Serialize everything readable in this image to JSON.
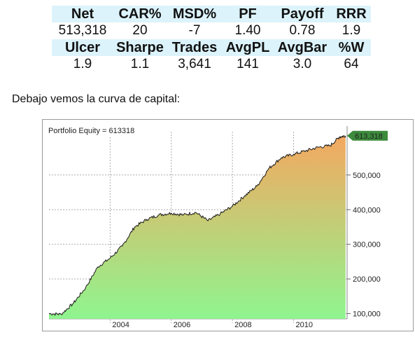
{
  "stats": {
    "row1_headers": [
      "Net",
      "CAR%",
      "MSD%",
      "PF",
      "Payoff",
      "RRR"
    ],
    "row1_values": [
      "513,318",
      "20",
      "-7",
      "1.40",
      "0.78",
      "1.9"
    ],
    "row2_headers": [
      "Ulcer",
      "Sharpe",
      "Trades",
      "AvgPL",
      "AvgBar",
      "%W"
    ],
    "row2_values": [
      "1.9",
      "1.1",
      "3,641",
      "141",
      "3.0",
      "64"
    ],
    "header_bg": "#dcf3fb"
  },
  "caption": "Debajo vemos la curva de capital:",
  "chart_data": {
    "type": "area",
    "title": "Portfolio Equity = 613318",
    "last_value_label": "613,318",
    "xlabel": "",
    "ylabel": "",
    "x": [
      2002.0,
      2002.4,
      2002.8,
      2003.2,
      2003.6,
      2004.0,
      2004.4,
      2004.8,
      2005.2,
      2005.6,
      2006.0,
      2006.4,
      2006.8,
      2007.2,
      2007.6,
      2008.0,
      2008.4,
      2008.8,
      2009.2,
      2009.6,
      2010.0,
      2010.4,
      2010.8,
      2011.2,
      2011.5,
      2011.7
    ],
    "values": [
      100000,
      98000,
      130000,
      175000,
      235000,
      260000,
      295000,
      350000,
      372000,
      385000,
      390000,
      385000,
      392000,
      368000,
      388000,
      410000,
      440000,
      468000,
      520000,
      550000,
      560000,
      570000,
      580000,
      585000,
      610000,
      613318
    ],
    "xlim": [
      2002.0,
      2011.75
    ],
    "ylim": [
      85000,
      625000
    ],
    "x_ticks": [
      2004,
      2006,
      2008,
      2010
    ],
    "x_tick_labels": [
      "2004",
      "2006",
      "2008",
      "2010"
    ],
    "y_ticks": [
      100000,
      200000,
      300000,
      400000,
      500000
    ],
    "y_tick_labels": [
      "100,000",
      "200,000",
      "300,000",
      "400,000",
      "500,000"
    ],
    "grid": true,
    "fill_top_color": "#f4a860",
    "fill_bottom_color": "#8ff58f",
    "line_color": "#1a1a1a",
    "marker_color": "#3c8a3c"
  }
}
